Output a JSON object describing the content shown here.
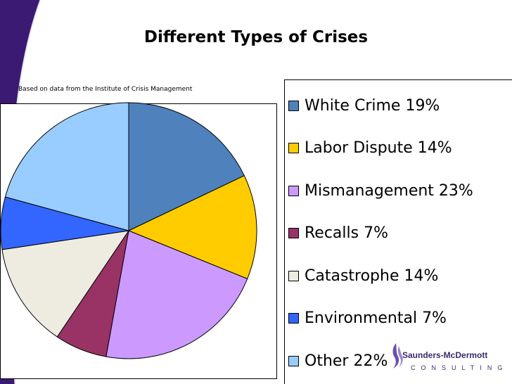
{
  "slide": {
    "title": "Different Types of Crises",
    "source_note": "Based on data from the Institute of Crisis Management"
  },
  "chart_data": {
    "type": "pie",
    "title": "Different Types of Crises",
    "categories": [
      "White Crime",
      "Labor Dispute",
      "Mismanagement",
      "Recalls",
      "Catastrophe",
      "Environmental",
      "Other"
    ],
    "values": [
      19,
      14,
      23,
      7,
      14,
      7,
      22
    ],
    "unit": "%",
    "colors": [
      "#4f81bd",
      "#ffcc00",
      "#cc99ff",
      "#993366",
      "#eeece1",
      "#3366ff",
      "#99ccff"
    ],
    "legend_labels": [
      "White Crime 19%",
      "Labor Dispute 14%",
      "Mismanagement 23%",
      "Recalls 7%",
      "Catastrophe 14%",
      "Environmental 7%",
      "Other 22%"
    ],
    "legend_position": "right"
  },
  "branding": {
    "logo_name": "Saunders-McDermott",
    "logo_tagline": "CONSULTING",
    "accent_color": "#3a1a6e"
  }
}
